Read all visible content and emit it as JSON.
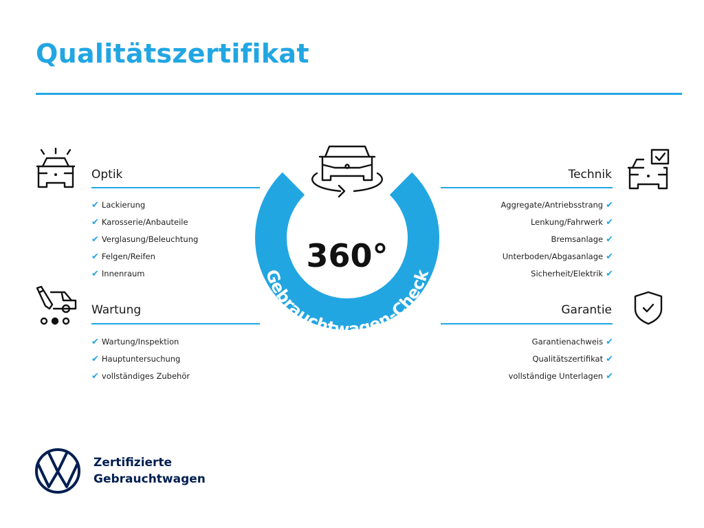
{
  "title": "Qualitätszertifikat",
  "colors": {
    "accent": "#22a6e2",
    "brand_navy": "#001e50",
    "text": "#1a1a1a"
  },
  "center": {
    "degrees": "360°",
    "arc_text": "Gebrauchtwagen-Check",
    "icon": "car-rotate-icon"
  },
  "check_glyph": "✔",
  "sections": {
    "optik": {
      "heading": "Optik",
      "icon": "car-lights-icon",
      "items": [
        "Lackierung",
        "Karosserie/Anbauteile",
        "Verglasung/Beleuchtung",
        "Felgen/Reifen",
        "Innenraum"
      ]
    },
    "wartung": {
      "heading": "Wartung",
      "icon": "car-service-icon",
      "items": [
        "Wartung/Inspektion",
        "Hauptuntersuchung",
        "vollständiges Zubehör"
      ]
    },
    "technik": {
      "heading": "Technik",
      "icon": "car-checklist-icon",
      "items": [
        "Aggregate/Antriebsstrang",
        "Lenkung/Fahrwerk",
        "Bremsanlage",
        "Unterboden/Abgasanlage",
        "Sicherheit/Elektrik"
      ]
    },
    "garantie": {
      "heading": "Garantie",
      "icon": "shield-check-icon",
      "items": [
        "Garantienachweis",
        "Qualitätszertifikat",
        "vollständige Unterlagen"
      ]
    }
  },
  "footer": {
    "line1": "Zertifizierte",
    "line2": "Gebrauchtwagen",
    "logo": "vw-logo"
  }
}
